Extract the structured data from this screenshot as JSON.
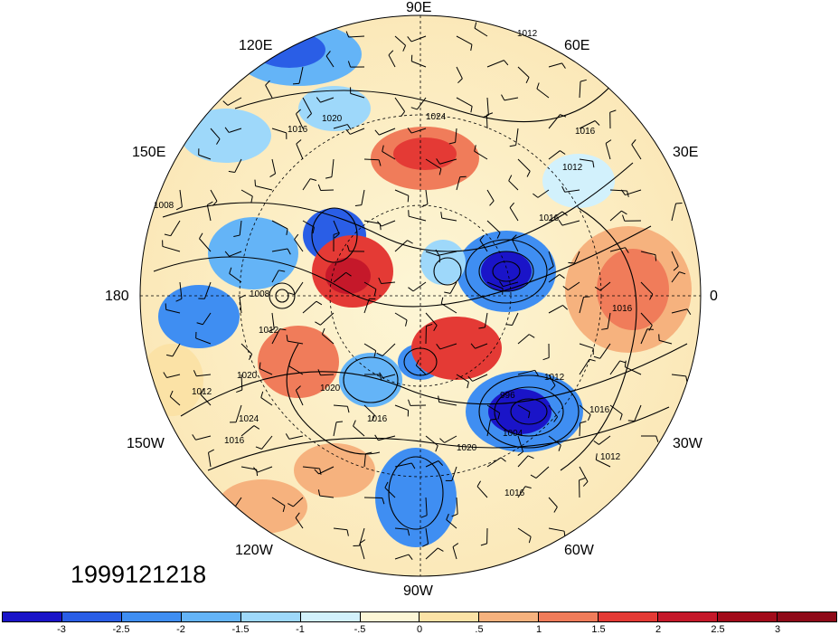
{
  "map": {
    "longitude_labels": [
      "90E",
      "60E",
      "30E",
      "0",
      "30W",
      "60W",
      "90W",
      "120W",
      "150W",
      "180",
      "150E",
      "120E"
    ],
    "contour_labels": [
      "1012",
      "1024",
      "1016",
      "1020",
      "1016",
      "1008",
      "1008",
      "1012",
      "1020",
      "1020",
      "1024",
      "1016",
      "1012",
      "1016",
      "1016",
      "1020",
      "1016",
      "996",
      "1004",
      "1012",
      "1016",
      "1012",
      "1016",
      "1012"
    ],
    "projection": "north polar stereographic",
    "fields": [
      "sea level pressure contours",
      "wind barbs",
      "filled anomaly"
    ]
  },
  "timestamp": "1999121218",
  "colorbar": {
    "tick_labels": [
      "-3",
      "-2.5",
      "-2",
      "-1.5",
      "-1",
      "-.5",
      "0",
      ".5",
      "1",
      "1.5",
      "2",
      "2.5",
      "3"
    ],
    "colors": [
      "#1a14c8",
      "#2a5ee6",
      "#3f8ef2",
      "#64b4f7",
      "#9ed8fa",
      "#d2f1fc",
      "#fdf6d6",
      "#fbe2a6",
      "#f6b27e",
      "#f07c5a",
      "#e43a35",
      "#c5182a",
      "#a20b1a",
      "#8f0a18"
    ]
  }
}
